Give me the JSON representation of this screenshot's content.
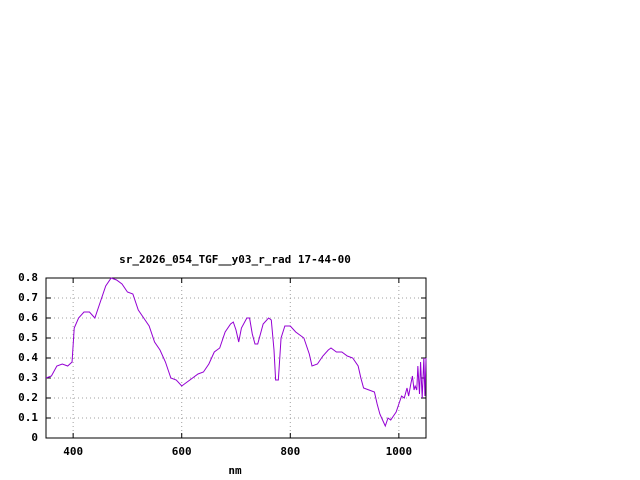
{
  "chart_data": {
    "type": "line",
    "title": "sr_2026_054_TGF__y03_r_rad 17-44-00",
    "x_label": "nm",
    "xlim": [
      350,
      1050
    ],
    "ylim": [
      0,
      0.8
    ],
    "xticks": [
      400,
      600,
      800,
      1000
    ],
    "yticks": [
      0,
      0.1,
      0.2,
      0.3,
      0.4,
      0.5,
      0.6,
      0.7,
      0.8
    ],
    "grid": true,
    "x": [
      350,
      360,
      370,
      380,
      390,
      398,
      402,
      410,
      420,
      430,
      440,
      450,
      460,
      470,
      480,
      490,
      500,
      510,
      520,
      530,
      540,
      550,
      560,
      570,
      580,
      590,
      600,
      610,
      620,
      630,
      640,
      650,
      660,
      670,
      680,
      690,
      695,
      700,
      705,
      710,
      720,
      725,
      730,
      735,
      740,
      750,
      760,
      765,
      770,
      773,
      778,
      783,
      790,
      800,
      810,
      820,
      825,
      835,
      840,
      850,
      860,
      870,
      875,
      885,
      895,
      905,
      915,
      925,
      930,
      935,
      945,
      955,
      960,
      965,
      970,
      975,
      980,
      985,
      990,
      995,
      1000,
      1005,
      1010,
      1015,
      1018,
      1022,
      1025,
      1028,
      1030,
      1033,
      1035,
      1038,
      1040,
      1043,
      1046,
      1048,
      1050
    ],
    "series": [
      {
        "color": "#9400d3",
        "values": [
          0.3,
          0.31,
          0.36,
          0.37,
          0.36,
          0.38,
          0.55,
          0.6,
          0.63,
          0.63,
          0.6,
          0.68,
          0.76,
          0.8,
          0.79,
          0.77,
          0.73,
          0.72,
          0.64,
          0.6,
          0.56,
          0.48,
          0.44,
          0.38,
          0.3,
          0.29,
          0.26,
          0.28,
          0.3,
          0.32,
          0.33,
          0.37,
          0.43,
          0.45,
          0.53,
          0.57,
          0.58,
          0.54,
          0.48,
          0.55,
          0.6,
          0.6,
          0.52,
          0.47,
          0.47,
          0.57,
          0.6,
          0.59,
          0.44,
          0.29,
          0.29,
          0.5,
          0.56,
          0.56,
          0.53,
          0.51,
          0.5,
          0.42,
          0.36,
          0.37,
          0.41,
          0.44,
          0.45,
          0.43,
          0.43,
          0.41,
          0.4,
          0.36,
          0.3,
          0.25,
          0.24,
          0.23,
          0.17,
          0.12,
          0.09,
          0.06,
          0.1,
          0.09,
          0.11,
          0.13,
          0.17,
          0.21,
          0.2,
          0.25,
          0.21,
          0.27,
          0.31,
          0.24,
          0.26,
          0.24,
          0.36,
          0.22,
          0.38,
          0.2,
          0.4,
          0.21,
          0.4
        ]
      }
    ]
  }
}
